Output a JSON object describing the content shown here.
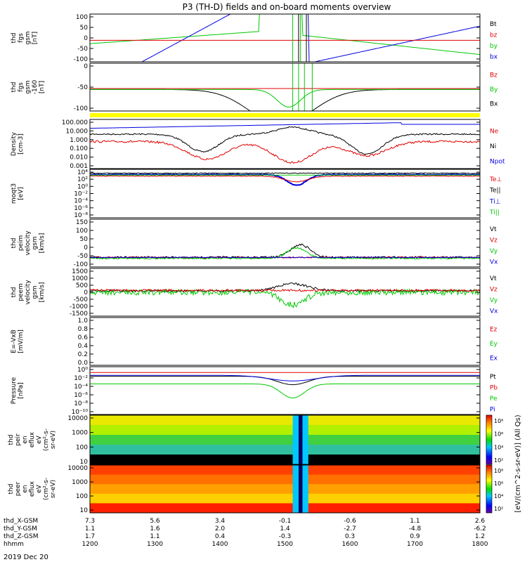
{
  "title": "P3 (TH-D) fields and on-board moments overview",
  "date_label": "2019 Dec 20",
  "colors": {
    "black": "#000000",
    "red": "#e00000",
    "green": "#00c800",
    "blue": "#0000e0",
    "yellow": "#ffff00"
  },
  "chart_data": [
    {
      "type": "line",
      "ylabel": [
        "thd",
        "fgs",
        "gsm",
        "[nT]"
      ],
      "ylim": [
        -100,
        100
      ],
      "yticks": [
        "100",
        "50",
        "0",
        "-50",
        "-100"
      ],
      "legend": [
        {
          "name": "Bt",
          "color": "#000000"
        },
        {
          "name": "bz",
          "color": "#e00000"
        },
        {
          "name": "by",
          "color": "#00c800"
        },
        {
          "name": "bx",
          "color": "#0000e0"
        }
      ]
    },
    {
      "type": "line",
      "ylabel": [
        "thd",
        "fgs",
        "gsm",
        "-160",
        "[nT]"
      ],
      "ylim": [
        -130,
        30
      ],
      "yticks": [
        "0",
        "-50",
        "-100"
      ],
      "legend": [
        {
          "name": "Bz",
          "color": "#e00000"
        },
        {
          "name": "By",
          "color": "#00c800"
        },
        {
          "name": "Bx",
          "color": "#000000"
        }
      ]
    },
    {
      "type": "line",
      "ylabel": [
        "Density",
        "[cm-3]"
      ],
      "log": true,
      "yticks": [
        "100.000",
        "10.000",
        "1.000",
        "0.100",
        "0.010",
        "0.001"
      ],
      "legend": [
        {
          "name": "Ne",
          "color": "#e00000"
        },
        {
          "name": "Ni",
          "color": "#000000"
        },
        {
          "name": "Npot",
          "color": "#0000e0"
        }
      ]
    },
    {
      "type": "line",
      "ylabel": [
        "moqt3",
        "[eV]"
      ],
      "log": true,
      "yticks": [
        "10⁴",
        "10²",
        "10⁰",
        "10⁻²",
        "10⁻⁴",
        "10⁻⁶",
        "10⁻⁸"
      ],
      "legend": [
        {
          "name": "Te⊥",
          "color": "#e00000"
        },
        {
          "name": "Te||",
          "color": "#000000"
        },
        {
          "name": "Ti⊥",
          "color": "#0000e0"
        },
        {
          "name": "Ti||",
          "color": "#00c800"
        }
      ]
    },
    {
      "type": "line",
      "ylabel": [
        "thd",
        "peim",
        "velocity",
        "gsm",
        "[km/s]"
      ],
      "ylim": [
        -100,
        150
      ],
      "yticks": [
        "150",
        "100",
        "50",
        "0",
        "-50",
        "-100"
      ],
      "legend": [
        {
          "name": "Vt",
          "color": "#000000"
        },
        {
          "name": "Vz",
          "color": "#e00000"
        },
        {
          "name": "Vy",
          "color": "#00c800"
        },
        {
          "name": "Vx",
          "color": "#0000e0"
        }
      ]
    },
    {
      "type": "line",
      "ylabel": [
        "thd",
        "peem",
        "velocity",
        "gsm",
        "[km/s]"
      ],
      "ylim": [
        -1500,
        1500
      ],
      "yticks": [
        "1500",
        "1000",
        "500",
        "0",
        "-500",
        "-1000",
        "-1500"
      ],
      "legend": [
        {
          "name": "Vt",
          "color": "#000000"
        },
        {
          "name": "Vz",
          "color": "#e00000"
        },
        {
          "name": "Vy",
          "color": "#00c800"
        },
        {
          "name": "Vx",
          "color": "#0000e0"
        }
      ]
    },
    {
      "type": "line",
      "ylabel": [
        "E=-VxB",
        "[mV/m]"
      ],
      "ylim": [
        0,
        1
      ],
      "yticks": [
        "1.0",
        "0.8",
        "0.6",
        "0.4",
        "0.2",
        "0.0"
      ],
      "legend": [
        {
          "name": "Ez",
          "color": "#e00000"
        },
        {
          "name": "Ey",
          "color": "#00c800"
        },
        {
          "name": "Ex",
          "color": "#0000e0"
        }
      ]
    },
    {
      "type": "line",
      "ylabel": [
        "Pressure",
        "[nPa]"
      ],
      "log": true,
      "yticks": [
        "10⁰",
        "10⁻²",
        "10⁻⁴",
        "10⁻⁶",
        "10⁻⁸",
        "10⁻¹⁰"
      ],
      "legend": [
        {
          "name": "Pt",
          "color": "#000000"
        },
        {
          "name": "Pb",
          "color": "#e00000"
        },
        {
          "name": "Pe",
          "color": "#00c800"
        },
        {
          "name": "Pi",
          "color": "#0000e0"
        }
      ]
    },
    {
      "type": "heatmap",
      "ylabel": [
        "thd",
        "peir",
        "en",
        "eflux",
        "eV",
        "(cm²-s-",
        "sr-eV)"
      ],
      "yticks": [
        "10000",
        "1000",
        "100",
        "10"
      ],
      "colorbar_ticks": [
        "10⁸",
        "10⁶",
        "10⁴",
        "10²"
      ]
    },
    {
      "type": "heatmap",
      "ylabel": [
        "thd",
        "peer",
        "en",
        "eflux",
        "eV",
        "(cm²-s-",
        "sr-eV)"
      ],
      "yticks": [
        "10000",
        "1000",
        "100",
        "10"
      ],
      "colorbar_ticks": [
        "10⁸",
        "10⁶",
        "10⁴",
        "10²"
      ]
    }
  ],
  "colorbar_label": "[eV/(cm^2-s-sr-eV)] (All Qs)",
  "x_axis": {
    "rows": [
      {
        "label": "thd_X-GSM",
        "values": [
          "7.3",
          "5.6",
          "3.4",
          "-0.1",
          "-0.6",
          "1.1",
          "2.6"
        ]
      },
      {
        "label": "thd_Y-GSM",
        "values": [
          "1.1",
          "1.6",
          "2.0",
          "1.4",
          "-2.7",
          "-4.8",
          "-6.2"
        ]
      },
      {
        "label": "thd_Z-GSM",
        "values": [
          "1.7",
          "1.1",
          "0.4",
          "-0.3",
          "0.3",
          "0.9",
          "1.2"
        ]
      },
      {
        "label": "hhmm",
        "values": [
          "1200",
          "1300",
          "1400",
          "1500",
          "1600",
          "1700",
          "1800"
        ]
      }
    ]
  }
}
